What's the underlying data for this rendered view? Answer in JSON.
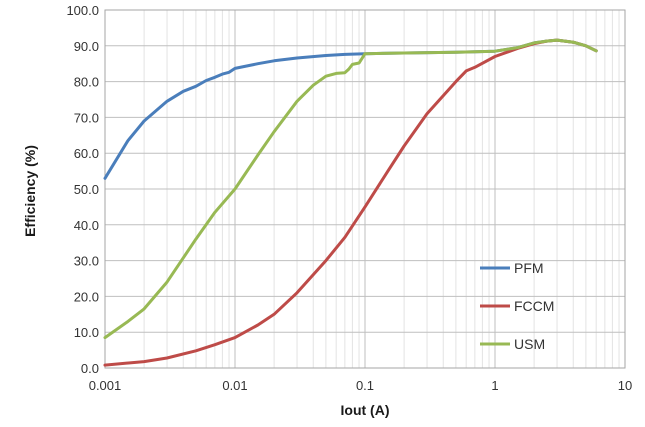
{
  "chart_data": {
    "type": "line",
    "title": "",
    "xlabel": "Iout (A)",
    "ylabel": "Efficiency (%)",
    "x_scale": "log",
    "xlim": [
      0.001,
      10
    ],
    "ylim": [
      0,
      100
    ],
    "x_ticks": [
      "0.001",
      "0.01",
      "0.1",
      "1",
      "10"
    ],
    "y_ticks": [
      "0.0",
      "10.0",
      "20.0",
      "30.0",
      "40.0",
      "50.0",
      "60.0",
      "70.0",
      "80.0",
      "90.0",
      "100.0"
    ],
    "grid": true,
    "legend_position": "bottom-right",
    "series": [
      {
        "name": "PFM",
        "color": "#4a7ebb",
        "x": [
          0.001,
          0.0015,
          0.002,
          0.003,
          0.004,
          0.005,
          0.006,
          0.007,
          0.008,
          0.009,
          0.01,
          0.015,
          0.02,
          0.03,
          0.05,
          0.07,
          0.1,
          0.2,
          0.5,
          1,
          1.5,
          2,
          2.5,
          3,
          4,
          5,
          6
        ],
        "y": [
          53,
          63.5,
          69,
          74.5,
          77.3,
          78.7,
          80.3,
          81.2,
          82.1,
          82.6,
          83.7,
          85,
          85.8,
          86.6,
          87.3,
          87.6,
          87.8,
          88,
          88.2,
          88.5,
          89.5,
          90.8,
          91.3,
          91.6,
          91,
          90,
          88.6
        ]
      },
      {
        "name": "FCCM",
        "color": "#be4b48",
        "x": [
          0.001,
          0.002,
          0.003,
          0.005,
          0.007,
          0.01,
          0.015,
          0.02,
          0.03,
          0.05,
          0.07,
          0.1,
          0.15,
          0.2,
          0.3,
          0.5,
          0.6,
          0.7,
          1,
          1.5,
          2,
          2.5,
          3,
          4,
          5,
          6
        ],
        "y": [
          0.8,
          1.8,
          2.8,
          4.8,
          6.5,
          8.5,
          12,
          15,
          21,
          30,
          36.5,
          45,
          55,
          62,
          71,
          80,
          83,
          84,
          87,
          89.3,
          90.6,
          91.3,
          91.6,
          91,
          90,
          88.6
        ]
      },
      {
        "name": "USM",
        "color": "#98b954",
        "x": [
          0.001,
          0.0015,
          0.002,
          0.003,
          0.005,
          0.007,
          0.01,
          0.015,
          0.02,
          0.03,
          0.04,
          0.05,
          0.06,
          0.07,
          0.075,
          0.08,
          0.09,
          0.1,
          0.2,
          0.5,
          1,
          1.5,
          2,
          2.5,
          3,
          4,
          5,
          6
        ],
        "y": [
          8.5,
          13,
          16.5,
          24,
          36,
          43.5,
          50,
          59.5,
          66,
          74.5,
          79,
          81.5,
          82.3,
          82.5,
          83.5,
          84.8,
          85.2,
          87.8,
          88,
          88.2,
          88.5,
          89.5,
          90.8,
          91.3,
          91.6,
          91,
          90,
          88.6
        ]
      }
    ]
  }
}
